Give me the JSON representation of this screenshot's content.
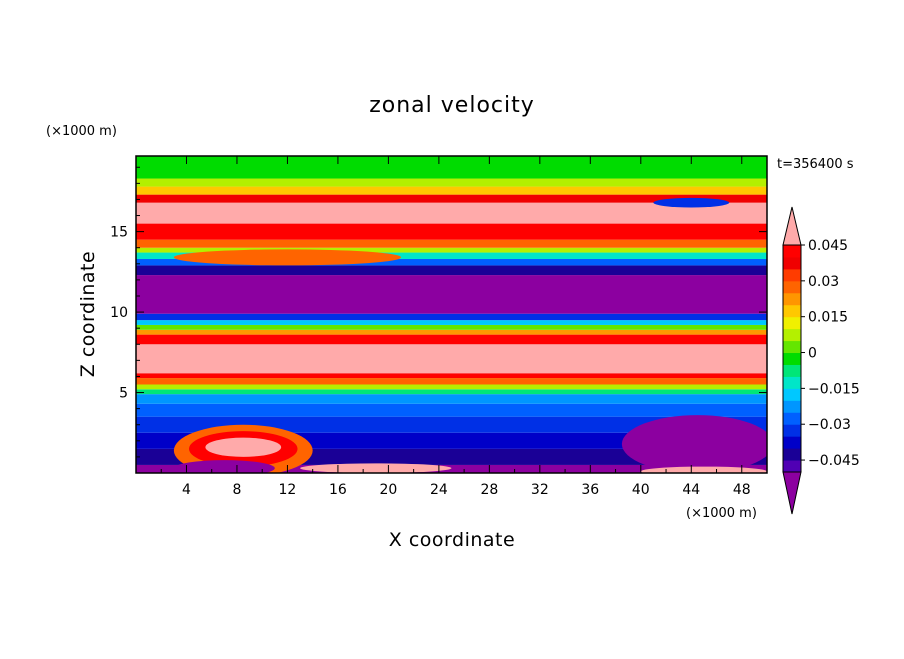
{
  "chart_data": {
    "type": "heatmap",
    "title": "zonal velocity",
    "xlabel": "X coordinate",
    "ylabel": "Z coordinate",
    "x_unit": "(×1000 m)",
    "y_unit": "(×1000 m)",
    "time_label": "t=356400 s",
    "xlim": [
      0,
      50
    ],
    "ylim": [
      0,
      19.7
    ],
    "x_ticks": [
      4,
      8,
      12,
      16,
      20,
      24,
      28,
      32,
      36,
      40,
      44,
      48
    ],
    "y_ticks": [
      5,
      10,
      15
    ],
    "colorbar": {
      "levels": [
        -0.05,
        -0.045,
        -0.04,
        -0.035,
        -0.03,
        -0.025,
        -0.02,
        -0.015,
        -0.01,
        -0.005,
        0,
        0.005,
        0.01,
        0.015,
        0.02,
        0.025,
        0.03,
        0.035,
        0.04,
        0.045,
        0.05
      ],
      "colors": [
        "#8c00a0",
        "#5000b4",
        "#1a0096",
        "#0000c8",
        "#0030e6",
        "#0060ff",
        "#0096ff",
        "#00c8ff",
        "#00e6c8",
        "#00e678",
        "#00dc00",
        "#64e600",
        "#b4f000",
        "#f0f000",
        "#ffc800",
        "#ff9600",
        "#ff6400",
        "#ff3c00",
        "#f00000",
        "#ff0000",
        "#ffaaaa"
      ],
      "tick_labels": [
        "0.045",
        "0.03",
        "0.015",
        "0",
        "−0.015",
        "−0.03",
        "−0.045"
      ],
      "tick_values": [
        0.045,
        0.03,
        0.015,
        0,
        -0.015,
        -0.03,
        -0.045
      ]
    },
    "bands": [
      {
        "z": [
          0.0,
          0.5
        ],
        "value": -0.05
      },
      {
        "z": [
          0.5,
          1.5
        ],
        "value": -0.04
      },
      {
        "z": [
          1.5,
          2.5
        ],
        "value": -0.035
      },
      {
        "z": [
          2.5,
          3.5
        ],
        "value": -0.03
      },
      {
        "z": [
          3.5,
          4.3
        ],
        "value": -0.025
      },
      {
        "z": [
          4.3,
          4.9
        ],
        "value": -0.02
      },
      {
        "z": [
          4.9,
          5.2
        ],
        "value": -0.005
      },
      {
        "z": [
          5.2,
          5.5
        ],
        "value": 0.01
      },
      {
        "z": [
          5.5,
          5.9
        ],
        "value": 0.03
      },
      {
        "z": [
          5.9,
          6.2
        ],
        "value": 0.045
      },
      {
        "z": [
          6.2,
          8.0
        ],
        "value": 0.05
      },
      {
        "z": [
          8.0,
          8.6
        ],
        "value": 0.045
      },
      {
        "z": [
          8.6,
          8.9
        ],
        "value": 0.025
      },
      {
        "z": [
          8.9,
          9.2
        ],
        "value": 0.005
      },
      {
        "z": [
          9.2,
          9.5
        ],
        "value": -0.015
      },
      {
        "z": [
          9.5,
          9.9
        ],
        "value": -0.03
      },
      {
        "z": [
          9.9,
          12.3
        ],
        "value": -0.05
      },
      {
        "z": [
          12.3,
          12.9
        ],
        "value": -0.04
      },
      {
        "z": [
          12.9,
          13.3
        ],
        "value": -0.025
      },
      {
        "z": [
          13.3,
          13.7
        ],
        "value": -0.01
      },
      {
        "z": [
          13.7,
          14.0
        ],
        "value": 0.01
      },
      {
        "z": [
          14.0,
          14.5
        ],
        "value": 0.03
      },
      {
        "z": [
          14.5,
          15.5
        ],
        "value": 0.045
      },
      {
        "z": [
          15.5,
          16.8
        ],
        "value": 0.05
      },
      {
        "z": [
          16.8,
          17.3
        ],
        "value": 0.04
      },
      {
        "z": [
          17.3,
          17.8
        ],
        "value": 0.02
      },
      {
        "z": [
          17.8,
          18.3
        ],
        "value": 0.01
      },
      {
        "z": [
          18.3,
          19.7
        ],
        "value": 0.0
      }
    ],
    "features": [
      {
        "shape": "ellipse",
        "cx": 8.5,
        "cz": 1.4,
        "rx": 5.5,
        "rz": 1.6,
        "value": 0.03
      },
      {
        "shape": "ellipse",
        "cx": 8.5,
        "cz": 1.5,
        "rx": 4.3,
        "rz": 1.1,
        "value": 0.045
      },
      {
        "shape": "ellipse",
        "cx": 8.5,
        "cz": 1.6,
        "rx": 3.0,
        "rz": 0.6,
        "value": 0.05
      },
      {
        "shape": "ellipse",
        "cx": 44.5,
        "cz": 1.8,
        "rx": 6.0,
        "rz": 1.8,
        "value": -0.05
      },
      {
        "shape": "ellipse",
        "cx": 7.0,
        "cz": 0.3,
        "rx": 4.0,
        "rz": 0.5,
        "value": -0.05
      },
      {
        "shape": "ellipse",
        "cx": 45.0,
        "cz": 0.1,
        "rx": 5.0,
        "rz": 0.3,
        "value": 0.05
      },
      {
        "shape": "ellipse",
        "cx": 19.0,
        "cz": 0.3,
        "rx": 6.0,
        "rz": 0.3,
        "value": 0.05
      },
      {
        "shape": "ellipse",
        "cx": 44.0,
        "cz": 16.8,
        "rx": 3.0,
        "rz": 0.3,
        "value": -0.03
      },
      {
        "shape": "ellipse",
        "cx": 12.0,
        "cz": 13.4,
        "rx": 9.0,
        "rz": 0.5,
        "value": 0.03
      }
    ]
  }
}
